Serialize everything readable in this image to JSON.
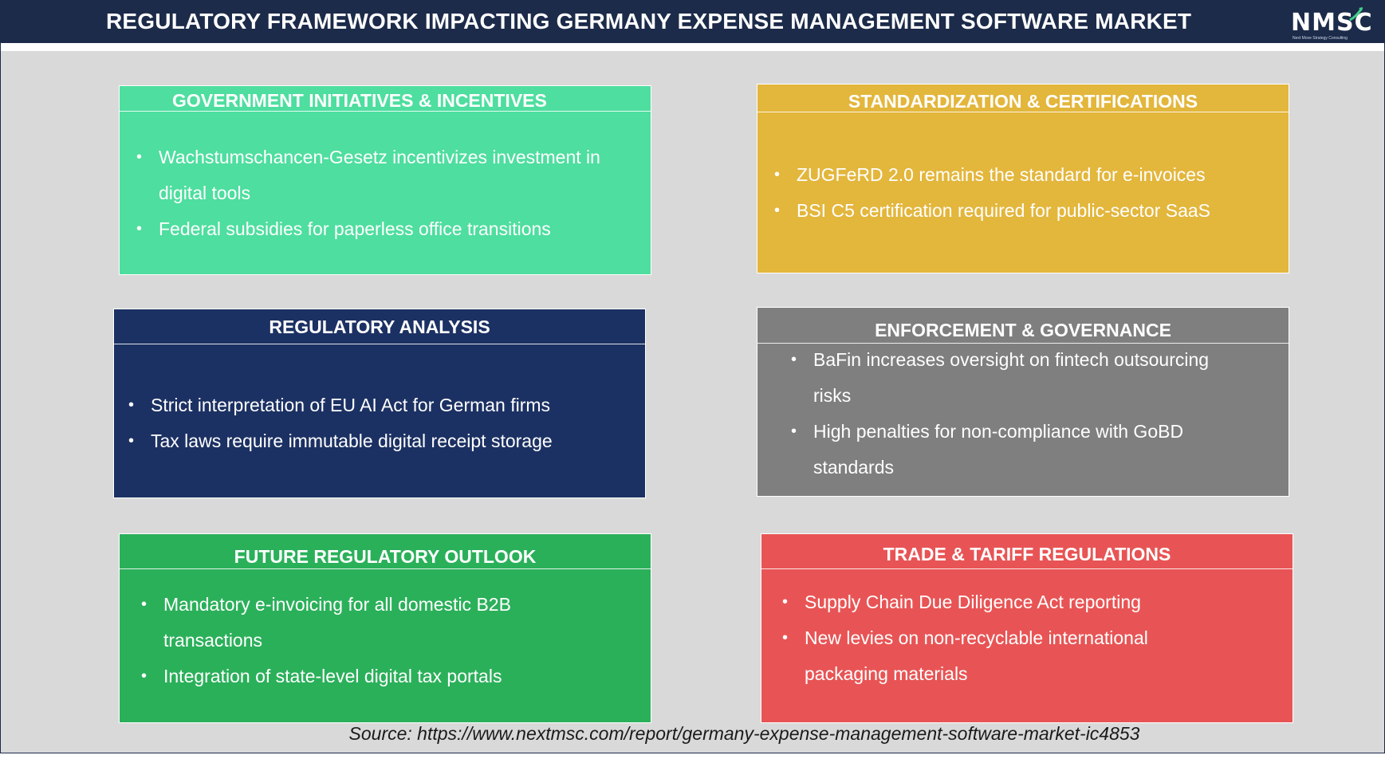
{
  "header": {
    "title": "REGULATORY FRAMEWORK IMPACTING GERMANY EXPENSE MANAGEMENT SOFTWARE MARKET",
    "logo_text": "NMSC",
    "logo_tagline": "Next Move Strategy Consulting"
  },
  "boxes": {
    "government": {
      "title": "GOVERNMENT INITIATIVES & INCENTIVES",
      "items": [
        "Wachstumschancen-Gesetz incentivizes investment in digital tools",
        "Federal subsidies for paperless office transitions"
      ]
    },
    "standardization": {
      "title": "STANDARDIZATION & CERTIFICATIONS",
      "items": [
        "ZUGFeRD 2.0 remains the standard for e-invoices",
        "BSI C5 certification required for public-sector SaaS"
      ]
    },
    "regulatory": {
      "title": "REGULATORY ANALYSIS",
      "items": [
        "Strict interpretation of EU AI Act for German firms",
        "Tax laws require immutable digital receipt storage"
      ]
    },
    "enforcement": {
      "title": "ENFORCEMENT & GOVERNANCE",
      "items": [
        "BaFin increases oversight on fintech outsourcing risks",
        "High penalties for non-compliance with GoBD standards"
      ]
    },
    "future": {
      "title": "FUTURE REGULATORY OUTLOOK",
      "items": [
        "Mandatory e-invoicing for all domestic B2B transactions",
        "Integration of state-level digital tax portals"
      ]
    },
    "trade": {
      "title": "TRADE & TARIFF REGULATIONS",
      "items": [
        "Supply Chain Due Diligence Act reporting",
        "New levies on non-recyclable international packaging materials"
      ]
    }
  },
  "footer": {
    "source": "Source: https://www.nextmsc.com/report/germany-expense-management-software-market-ic4853"
  },
  "colors": {
    "header_bg": "#1c2b4a",
    "government": "#4ede9f",
    "standardization": "#e3b63c",
    "regulatory": "#1c3163",
    "enforcement": "#7f7f7f",
    "future": "#2bb05a",
    "trade": "#e85455"
  }
}
